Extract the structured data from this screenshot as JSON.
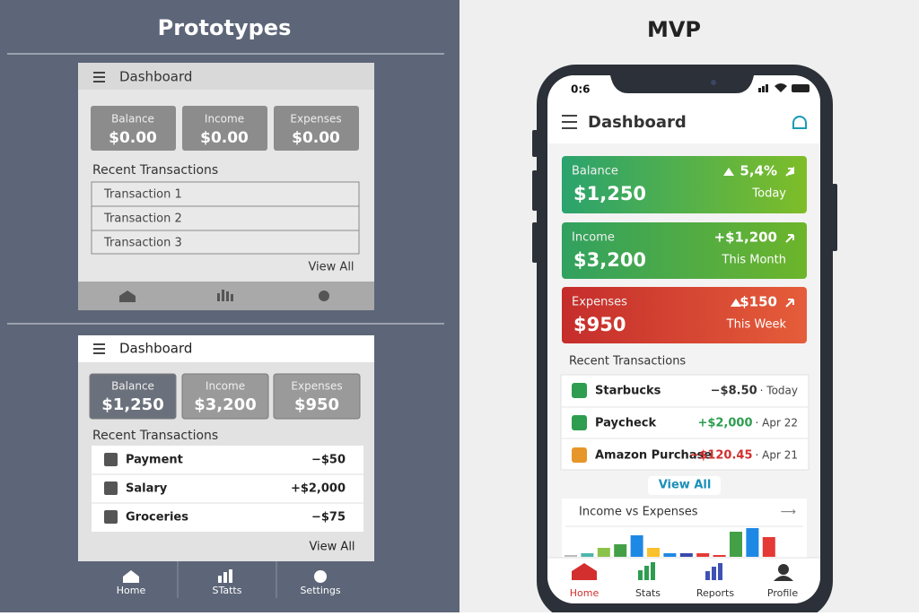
{
  "prototypes": {
    "title": "Prototypes",
    "v1": {
      "header": "Dashboard",
      "cards": [
        {
          "label": "Balance",
          "value": "$0.00"
        },
        {
          "label": "Income",
          "value": "$0.00"
        },
        {
          "label": "Expenses",
          "value": "$0.00"
        }
      ],
      "section": "Recent Transactions",
      "rows": [
        "Transaction 1",
        "Transaction 2",
        "Transaction 3"
      ],
      "link": "View All"
    },
    "v2": {
      "header": "Dashboard",
      "cards": [
        {
          "label": "Balance",
          "value": "$1,250"
        },
        {
          "label": "Income",
          "value": "$3,200"
        },
        {
          "label": "Expenses",
          "value": "$950"
        }
      ],
      "section": "Recent Transactions",
      "rows": [
        {
          "name": "Payment",
          "amount": "−$50"
        },
        {
          "name": "Salary",
          "amount": "+$2,000"
        },
        {
          "name": "Groceries",
          "amount": "−$75"
        }
      ],
      "link": "View All",
      "nav": [
        "Home",
        "STatts",
        "Settings"
      ]
    }
  },
  "mvp": {
    "title": "MVP",
    "status_time": "0:6",
    "header": "Dashboard",
    "cards": [
      {
        "label": "Balance",
        "value": "$1,250",
        "change": "5,4%",
        "period": "Today"
      },
      {
        "label": "Income",
        "value": "$3,200",
        "change": "+$1,200",
        "period": "This Month"
      },
      {
        "label": "Expenses",
        "value": "$950",
        "change": "$150",
        "period": "This Week"
      }
    ],
    "section": "Recent Transactions",
    "transactions": [
      {
        "name": "Starbucks",
        "amount": "−$8.50",
        "date": "· Today"
      },
      {
        "name": "Paycheck",
        "amount": "+$2,000",
        "date": "· Apr 22"
      },
      {
        "name": "Amazon Purchase",
        "amount": "−$120.45",
        "date": "· Apr 21"
      }
    ],
    "link": "View All",
    "chart": {
      "title": "Income vs Expenses",
      "values": [
        1,
        2,
        5,
        7,
        12,
        5,
        2,
        2,
        2,
        1,
        14,
        16,
        11
      ],
      "colors": [
        "#bdbdbd",
        "#4db6ac",
        "#8bc34a",
        "#43a047",
        "#1e88e5",
        "#fbc02d",
        "#1e88e5",
        "#3949ab",
        "#e53935",
        "#e53935",
        "#43a047",
        "#1e88e5",
        "#e53935"
      ]
    },
    "nav": [
      "Home",
      "Stats",
      "Reports",
      "Profile"
    ]
  }
}
